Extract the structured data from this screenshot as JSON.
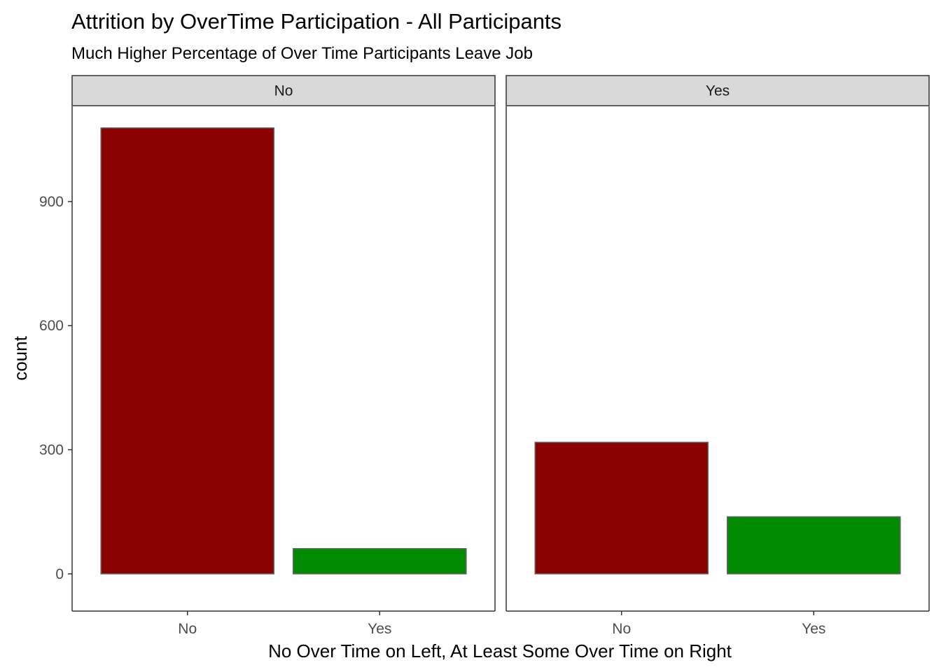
{
  "chart_data": {
    "type": "bar",
    "title": "Attrition by OverTime Participation - All Participants",
    "subtitle": "Much Higher Percentage of Over Time Participants Leave Job",
    "xlabel": "No Over Time on Left, At Least Some Over Time on Right",
    "ylabel": "count",
    "categories": [
      "No",
      "Yes"
    ],
    "ylim": [
      -90,
      1130
    ],
    "yticks": [
      0,
      300,
      600,
      900
    ],
    "grid": false,
    "legend": "none",
    "facets": [
      {
        "label": "No",
        "values": [
          1078,
          61
        ]
      },
      {
        "label": "Yes",
        "values": [
          318,
          138
        ]
      }
    ],
    "colors": {
      "No": "#8B0000",
      "Yes": "#008B00"
    },
    "bar_outline": "#666666"
  }
}
